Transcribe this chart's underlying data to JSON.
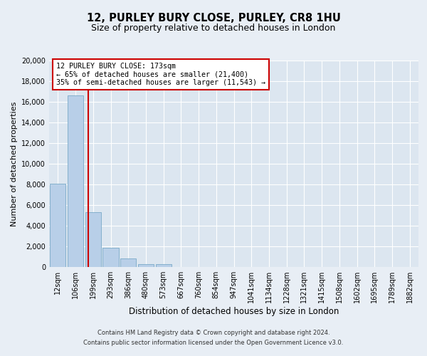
{
  "title": "12, PURLEY BURY CLOSE, PURLEY, CR8 1HU",
  "subtitle": "Size of property relative to detached houses in London",
  "xlabel": "Distribution of detached houses by size in London",
  "ylabel": "Number of detached properties",
  "categories": [
    "12sqm",
    "106sqm",
    "199sqm",
    "293sqm",
    "386sqm",
    "480sqm",
    "573sqm",
    "667sqm",
    "760sqm",
    "854sqm",
    "947sqm",
    "1041sqm",
    "1134sqm",
    "1228sqm",
    "1321sqm",
    "1415sqm",
    "1508sqm",
    "1602sqm",
    "1695sqm",
    "1789sqm",
    "1882sqm"
  ],
  "values": [
    8100,
    16600,
    5300,
    1850,
    800,
    300,
    270,
    0,
    0,
    0,
    0,
    0,
    0,
    0,
    0,
    0,
    0,
    0,
    0,
    0,
    0
  ],
  "bar_color": "#b8cfe8",
  "bar_edge_color": "#7aaac8",
  "vline_color": "#cc0000",
  "vline_x": 1.73,
  "annotation_line1": "12 PURLEY BURY CLOSE: 173sqm",
  "annotation_line2": "← 65% of detached houses are smaller (21,400)",
  "annotation_line3": "35% of semi-detached houses are larger (11,543) →",
  "ylim": [
    0,
    20000
  ],
  "yticks": [
    0,
    2000,
    4000,
    6000,
    8000,
    10000,
    12000,
    14000,
    16000,
    18000,
    20000
  ],
  "background_color": "#e8eef5",
  "plot_bg_color": "#dce6f0",
  "footer_line1": "Contains HM Land Registry data © Crown copyright and database right 2024.",
  "footer_line2": "Contains public sector information licensed under the Open Government Licence v3.0.",
  "title_fontsize": 10.5,
  "subtitle_fontsize": 9,
  "tick_fontsize": 7,
  "xlabel_fontsize": 8.5,
  "ylabel_fontsize": 8
}
